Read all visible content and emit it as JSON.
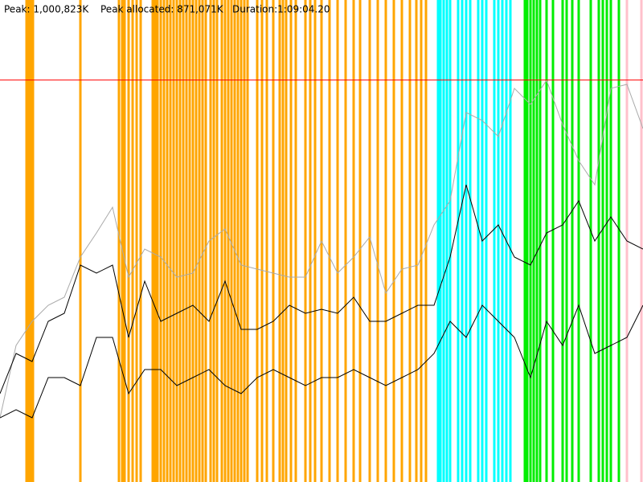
{
  "chart_data": {
    "type": "line",
    "peak": {
      "label": "Peak: 1,000,823K",
      "value": 1000823,
      "color": "#ff0000"
    },
    "peak_allocated": "Peak allocated: 871,071K",
    "duration": "Duration:1:09:04.20",
    "ylim": [
      0,
      1200000
    ],
    "xlim": [
      0,
      40
    ],
    "markers": [
      {
        "color": "#ffa500",
        "x": [
          1.65,
          1.8,
          1.95,
          2.05,
          5,
          7.4,
          7.6,
          7.75,
          8,
          8.25,
          8.5,
          8.75,
          9.5,
          9.65,
          9.8,
          10,
          10.2,
          10.4,
          10.6,
          10.8,
          11,
          11.2,
          11.4,
          11.6,
          11.8,
          12,
          12.2,
          12.4,
          12.6,
          12.8,
          13.1,
          13.3,
          13.5,
          13.8,
          14,
          14.2,
          14.4,
          14.6,
          14.8,
          15,
          15.2,
          15.4,
          16,
          16.3,
          16.6,
          17,
          17.4,
          17.6,
          17.8,
          18.1,
          18.4,
          19,
          19.3,
          19.6,
          20,
          20.5,
          21,
          21.5,
          22,
          22.4,
          23,
          23.5,
          24,
          24.5,
          25,
          25.5,
          25.9,
          26.2,
          26.5
        ]
      },
      {
        "color": "#00ffff",
        "x": [
          27.25,
          27.4,
          27.6,
          27.8,
          28,
          28.5,
          28.75,
          29,
          29.25,
          29.75,
          30,
          30.25,
          30.75,
          31,
          31.25,
          31.5,
          31.75
        ]
      },
      {
        "color": "#00ee00",
        "x": [
          32.65,
          32.8,
          33,
          33.2,
          33.4,
          33.6,
          34,
          34.4,
          35,
          35.25,
          35.6,
          36,
          36.75,
          37.25,
          37.5,
          37.75,
          38,
          38.5
        ]
      },
      {
        "color": "#ffc0cb",
        "x": [
          39,
          39.9
        ]
      }
    ],
    "series": [
      {
        "color": "#aaaaaa",
        "values": [
          160000,
          340000,
          400000,
          440000,
          460000,
          560000,
          620000,
          684000,
          510000,
          580000,
          560000,
          510000,
          520000,
          600000,
          630000,
          540000,
          530000,
          520000,
          510000,
          510000,
          600000,
          520000,
          560000,
          610000,
          470000,
          530000,
          540000,
          640000,
          700000,
          920000,
          900000,
          860000,
          980000,
          940000,
          1000000,
          890000,
          800000,
          740000,
          980000,
          990000,
          880000
        ]
      },
      {
        "color": "#000000",
        "values": [
          220000,
          320000,
          300000,
          400000,
          420000,
          540000,
          520000,
          540000,
          360000,
          500000,
          400000,
          420000,
          440000,
          400000,
          500000,
          380000,
          380000,
          400000,
          440000,
          420000,
          430000,
          420000,
          460000,
          400000,
          400000,
          420000,
          440000,
          440000,
          560000,
          740000,
          600000,
          640000,
          560000,
          540000,
          620000,
          640000,
          700000,
          600000,
          660000,
          600000,
          580000
        ]
      },
      {
        "color": "#000000",
        "values": [
          160000,
          180000,
          160000,
          260000,
          260000,
          240000,
          360000,
          360000,
          220000,
          280000,
          280000,
          240000,
          260000,
          280000,
          240000,
          220000,
          260000,
          280000,
          260000,
          240000,
          260000,
          260000,
          280000,
          260000,
          240000,
          260000,
          280000,
          320000,
          400000,
          360000,
          440000,
          400000,
          360000,
          260000,
          400000,
          340000,
          440000,
          320000,
          340000,
          360000,
          440000
        ]
      }
    ]
  }
}
